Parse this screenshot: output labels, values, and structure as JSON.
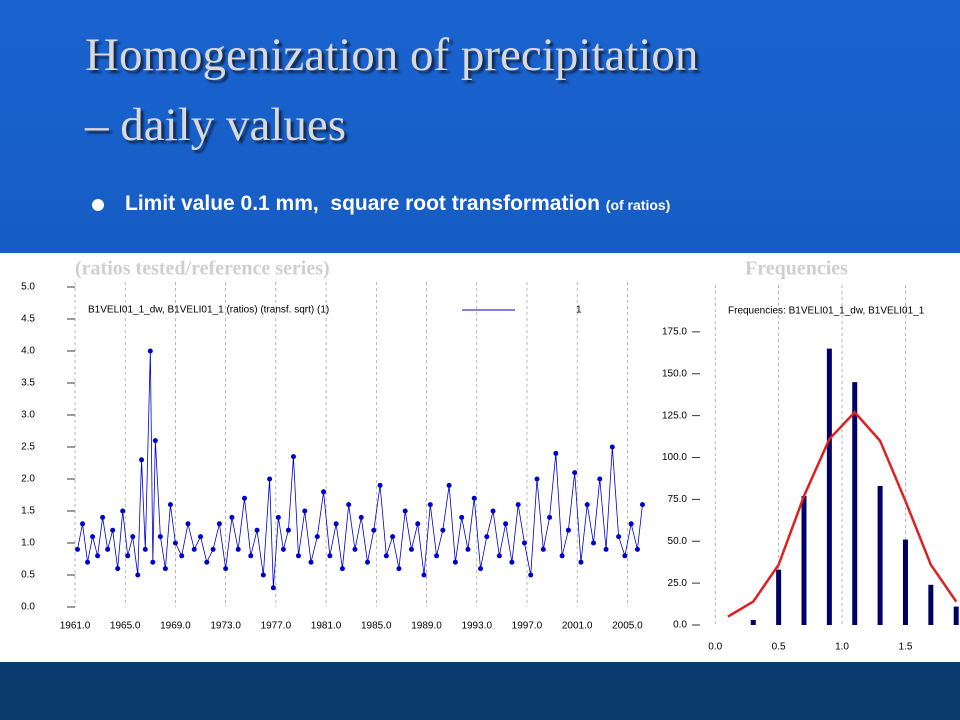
{
  "slide": {
    "title_line1": "Homogenization of precipitation",
    "title_line2": "– daily values",
    "bullet": "Limit value 0.1 mm,  square root transformation ",
    "bullet_note": "(of ratios)"
  },
  "chart_data": [
    {
      "type": "line",
      "heading": "(ratios tested/reference series)",
      "title": "B1VELI01_1_dw, B1VELI01_1 (ratios) (transf. sqrt) (1)",
      "xlim": [
        1961,
        2006.8
      ],
      "ylim": [
        0,
        5
      ],
      "grid": true,
      "xticks": [
        {
          "value": 1961,
          "label": "1961.0"
        },
        {
          "value": 1965,
          "label": "1965.0"
        },
        {
          "value": 1969,
          "label": "1969.0"
        },
        {
          "value": 1973,
          "label": "1973.0"
        },
        {
          "value": 1977,
          "label": "1977.0"
        },
        {
          "value": 1981,
          "label": "1981.0"
        },
        {
          "value": 1985,
          "label": "1985.0"
        },
        {
          "value": 1989,
          "label": "1989.0"
        },
        {
          "value": 1993,
          "label": "1993.0"
        },
        {
          "value": 1997,
          "label": "1997.0"
        },
        {
          "value": 2001,
          "label": "2001.0"
        },
        {
          "value": 2005,
          "label": "2005.0"
        }
      ],
      "yticks": [
        {
          "value": 0,
          "label": "0.0"
        },
        {
          "value": 0.5,
          "label": "0.5"
        },
        {
          "value": 1,
          "label": "1.0"
        },
        {
          "value": 1.5,
          "label": "1.5"
        },
        {
          "value": 2,
          "label": "2.0"
        },
        {
          "value": 2.5,
          "label": "2.5"
        },
        {
          "value": 3,
          "label": "3.0"
        },
        {
          "value": 3.5,
          "label": "3.5"
        },
        {
          "value": 4,
          "label": "4.0"
        },
        {
          "value": 4.5,
          "label": "4.5"
        },
        {
          "value": 5,
          "label": "5.0"
        }
      ],
      "series": [
        {
          "name": "1",
          "color": "#0000cc",
          "x": [
            1961.2,
            1961.6,
            1962.0,
            1962.4,
            1962.8,
            1963.2,
            1963.6,
            1964.0,
            1964.4,
            1964.8,
            1965.2,
            1965.6,
            1966.0,
            1966.3,
            1966.6,
            1967.0,
            1967.2,
            1967.4,
            1967.8,
            1968.2,
            1968.6,
            1969.0,
            1969.5,
            1970.0,
            1970.5,
            1971.0,
            1971.5,
            1972.0,
            1972.5,
            1973.0,
            1973.5,
            1974.0,
            1974.5,
            1975.0,
            1975.5,
            1976.0,
            1976.5,
            1976.8,
            1977.2,
            1977.6,
            1978.0,
            1978.4,
            1978.8,
            1979.3,
            1979.8,
            1980.3,
            1980.8,
            1981.3,
            1981.8,
            1982.3,
            1982.8,
            1983.3,
            1983.8,
            1984.3,
            1984.8,
            1985.3,
            1985.8,
            1986.3,
            1986.8,
            1987.3,
            1987.8,
            1988.3,
            1988.8,
            1989.3,
            1989.8,
            1990.3,
            1990.8,
            1991.3,
            1991.8,
            1992.3,
            1992.8,
            1993.3,
            1993.8,
            1994.3,
            1994.8,
            1995.3,
            1995.8,
            1996.3,
            1996.8,
            1997.3,
            1997.8,
            1998.3,
            1998.8,
            1999.3,
            1999.8,
            2000.3,
            2000.8,
            2001.3,
            2001.8,
            2002.3,
            2002.8,
            2003.3,
            2003.8,
            2004.3,
            2004.8,
            2005.3,
            2005.8,
            2006.2
          ],
          "values": [
            0.9,
            1.3,
            0.7,
            1.1,
            0.8,
            1.4,
            0.9,
            1.2,
            0.6,
            1.5,
            0.8,
            1.1,
            0.5,
            2.3,
            0.9,
            4.0,
            0.7,
            2.6,
            1.1,
            0.6,
            1.6,
            1.0,
            0.8,
            1.3,
            0.9,
            1.1,
            0.7,
            0.9,
            1.3,
            0.6,
            1.4,
            0.9,
            1.7,
            0.8,
            1.2,
            0.5,
            2.0,
            0.3,
            1.4,
            0.9,
            1.2,
            2.35,
            0.8,
            1.5,
            0.7,
            1.1,
            1.8,
            0.8,
            1.3,
            0.6,
            1.6,
            0.9,
            1.4,
            0.7,
            1.2,
            1.9,
            0.8,
            1.1,
            0.6,
            1.5,
            0.9,
            1.3,
            0.5,
            1.6,
            0.8,
            1.2,
            1.9,
            0.7,
            1.4,
            0.9,
            1.7,
            0.6,
            1.1,
            1.5,
            0.8,
            1.3,
            0.7,
            1.6,
            1.0,
            0.5,
            2.0,
            0.9,
            1.4,
            2.4,
            0.8,
            1.2,
            2.1,
            0.7,
            1.6,
            1.0,
            2.0,
            0.9,
            2.5,
            1.1,
            0.8,
            1.3,
            0.9,
            1.6
          ]
        }
      ]
    },
    {
      "type": "bar",
      "heading": "Frequencies",
      "title": "Frequencies: B1VELI01_1_dw, B1VELI01_1",
      "xlim": [
        -0.12,
        1.93
      ],
      "ylim": [
        0,
        200
      ],
      "grid": true,
      "xticks": [
        {
          "value": 0,
          "label": "0.0"
        },
        {
          "value": 0.5,
          "label": "0.5"
        },
        {
          "value": 1,
          "label": "1.0"
        },
        {
          "value": 1.5,
          "label": "1.5"
        }
      ],
      "yticks": [
        {
          "value": 0,
          "label": "0.0"
        },
        {
          "value": 25,
          "label": "25.0"
        },
        {
          "value": 50,
          "label": "50.0"
        },
        {
          "value": 75,
          "label": "75.0"
        },
        {
          "value": 100,
          "label": "100.0"
        },
        {
          "value": 125,
          "label": "125.0"
        },
        {
          "value": 150,
          "label": "150.0"
        },
        {
          "value": 175,
          "label": "175.0"
        }
      ],
      "bars": {
        "color": "#000066",
        "x": [
          0.3,
          0.5,
          0.7,
          0.9,
          1.1,
          1.3,
          1.5,
          1.7,
          1.9
        ],
        "values": [
          3,
          33,
          77,
          165,
          145,
          83,
          51,
          24,
          11
        ]
      },
      "curve": {
        "color": "#e02020",
        "x": [
          0.1,
          0.3,
          0.5,
          0.7,
          0.9,
          1.1,
          1.3,
          1.5,
          1.7,
          1.9
        ],
        "values": [
          5,
          14,
          36,
          77,
          111,
          127,
          110,
          74,
          36,
          14
        ]
      }
    }
  ]
}
